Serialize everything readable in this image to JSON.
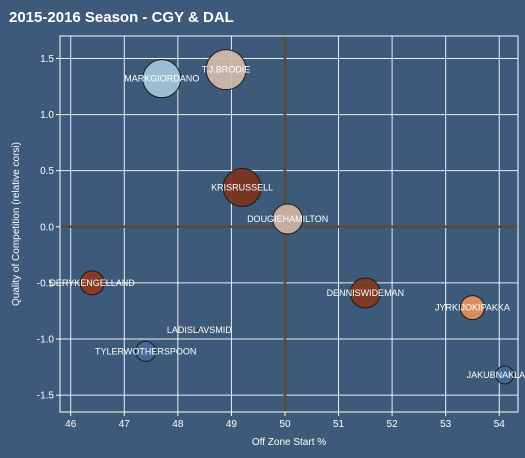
{
  "chart_data": {
    "type": "scatter",
    "title": "2015-2016 Season - CGY & DAL",
    "xlabel": "Off Zone Start %",
    "ylabel": "Quality of Competition (relative corsi)",
    "xlim": [
      45.8,
      54.35
    ],
    "ylim": [
      -1.65,
      1.7
    ],
    "x_ticks": [
      46,
      47,
      48,
      49,
      50,
      51,
      52,
      53,
      54
    ],
    "y_ticks": [
      -1.5,
      -1.0,
      -0.5,
      0.0,
      0.5,
      1.0,
      1.5
    ],
    "x_tick_labels": [
      "46",
      "47",
      "48",
      "49",
      "50",
      "51",
      "52",
      "53",
      "54"
    ],
    "y_tick_labels": [
      "-1.5",
      "-1.0",
      "-0.5",
      "0.0",
      "0.5",
      "1.0",
      "1.5"
    ],
    "reference_lines": {
      "x": 50.0,
      "y": 0.0
    },
    "grid": true,
    "colors": {
      "background": "#3d5a7a",
      "plot_border": "#ffffff",
      "grid": "#ffffff",
      "reference_line": "#5c4a3a",
      "bubble_edge": "#1a1a1a"
    },
    "points": [
      {
        "label": "T.J.BRODIE",
        "x": 48.9,
        "y": 1.4,
        "size": 20,
        "color": "#cfb8a8"
      },
      {
        "label": "MARKGIORDANO",
        "x": 47.7,
        "y": 1.32,
        "size": 19,
        "color": "#9ec4d6"
      },
      {
        "label": "KRISRUSSELL",
        "x": 49.2,
        "y": 0.35,
        "size": 19,
        "color": "#7a3520"
      },
      {
        "label": "DOUGIEHAMILTON",
        "x": 50.05,
        "y": 0.07,
        "size": 15,
        "color": "#c9b2a2"
      },
      {
        "label": "DERYKENGELLAND",
        "x": 46.4,
        "y": -0.5,
        "size": 12,
        "color": "#8a3a22"
      },
      {
        "label": "DENNISWIDEMAN",
        "x": 51.5,
        "y": -0.59,
        "size": 15,
        "color": "#7e3a22"
      },
      {
        "label": "JYRKIJOKIPAKKA",
        "x": 53.5,
        "y": -0.72,
        "size": 12,
        "color": "#e09060"
      },
      {
        "label": "LADISLAVSMID",
        "x": 48.4,
        "y": -0.92,
        "size": 1.5,
        "color": "#cc5533"
      },
      {
        "label": "TYLERWOTHERSPOON",
        "x": 47.4,
        "y": -1.11,
        "size": 10,
        "color": "#456a96"
      },
      {
        "label": "JAKUBNAKLADAL",
        "x": 54.1,
        "y": -1.32,
        "size": 9,
        "color": "#3f6a96"
      }
    ]
  }
}
